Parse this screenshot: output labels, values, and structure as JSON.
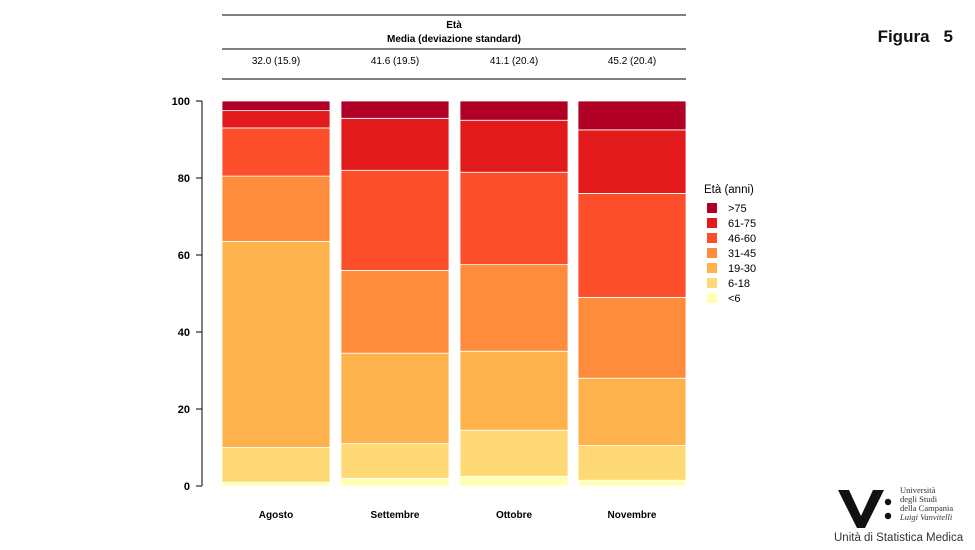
{
  "figure": {
    "label": "Figura",
    "number": "5"
  },
  "table_header": {
    "title": "Età",
    "subtitle": "Media (deviazione standard)",
    "values": [
      "32.0 (15.9)",
      "41.6 (19.5)",
      "41.1 (20.4)",
      "45.2 (20.4)"
    ]
  },
  "logo": {
    "uni_lines": [
      "Università",
      "degli Studi",
      "della Campania"
    ],
    "uni_name": "Luigi Vanvitelli",
    "unit": "Unità di Statistica Medica"
  },
  "chart_data": {
    "type": "bar",
    "stacked": true,
    "categories": [
      "Agosto",
      "Settembre",
      "Ottobre",
      "Novembre"
    ],
    "ylim": [
      0,
      100
    ],
    "yticks": [
      "0",
      "20",
      "40",
      "60",
      "80",
      "100"
    ],
    "grid": false,
    "legend": {
      "title": "Età (anni)",
      "placement": "right"
    },
    "series": [
      {
        "name": "<6",
        "color": "#FFFFB2",
        "values": [
          1.0,
          2.0,
          2.5,
          1.5
        ]
      },
      {
        "name": "6-18",
        "color": "#FED976",
        "values": [
          9.0,
          9.0,
          12.0,
          9.0
        ]
      },
      {
        "name": "19-30",
        "color": "#FEB24C",
        "values": [
          53.5,
          23.5,
          20.5,
          17.5
        ]
      },
      {
        "name": "31-45",
        "color": "#FD8D3C",
        "values": [
          17.0,
          21.5,
          22.5,
          21.0
        ]
      },
      {
        "name": "46-60",
        "color": "#FC4E2A",
        "values": [
          12.5,
          26.0,
          24.0,
          27.0
        ]
      },
      {
        "name": "61-75",
        "color": "#E31A1C",
        "values": [
          4.5,
          13.5,
          13.5,
          16.5
        ]
      },
      {
        "name": ">75",
        "color": "#B10026",
        "values": [
          2.5,
          4.5,
          5.0,
          7.5
        ]
      }
    ]
  }
}
